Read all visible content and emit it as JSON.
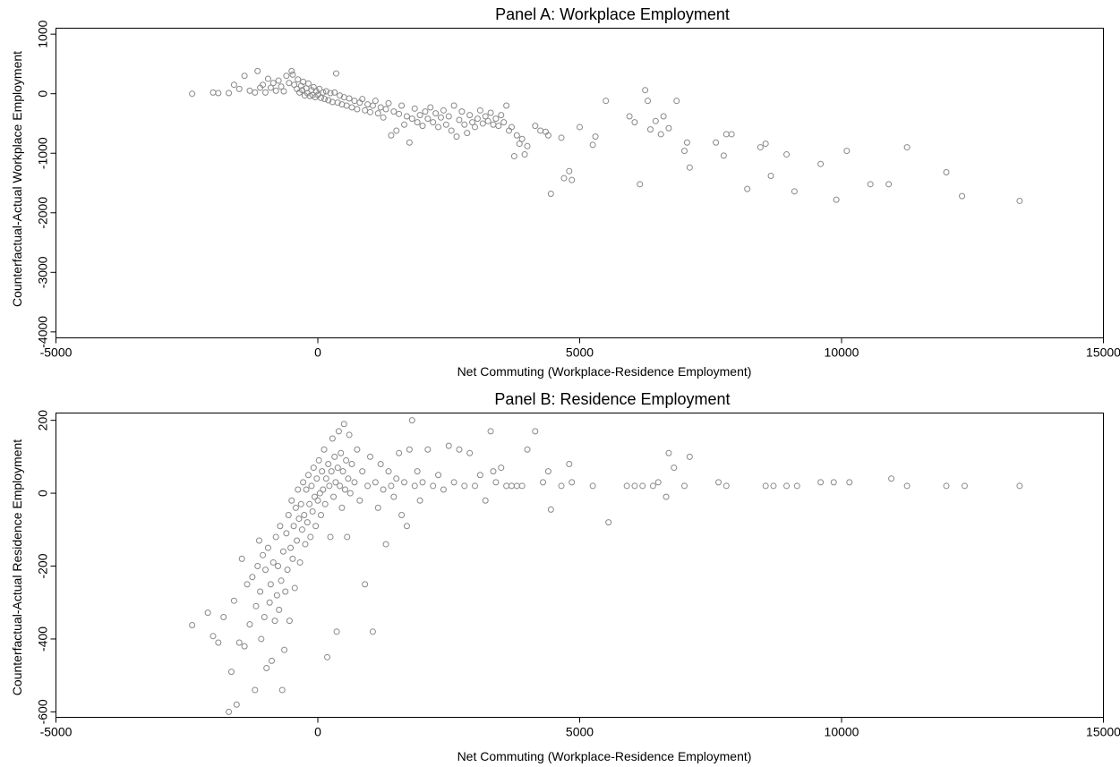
{
  "chart_data": [
    {
      "type": "scatter",
      "title": "Panel A: Workplace Employment",
      "xlabel": "Net Commuting (Workplace-Residence Employment)",
      "ylabel": "Counterfactual-Actual Workplace Employment",
      "xlim": [
        -5000,
        15000
      ],
      "ylim": [
        -4100,
        1100
      ],
      "xticks": [
        "-5000",
        "0",
        "5000",
        "10000",
        "15000"
      ],
      "xtick_values": [
        -5000,
        0,
        5000,
        10000,
        15000
      ],
      "yticks": [
        "-4000",
        "-3000",
        "-2000",
        "-1000",
        "0",
        "1000"
      ],
      "ytick_values": [
        -4000,
        -3000,
        -2000,
        -1000,
        0,
        1000
      ],
      "marker_color": "#888888",
      "points": [
        [
          -2400,
          0
        ],
        [
          -2000,
          20
        ],
        [
          -1900,
          10
        ],
        [
          -1700,
          10
        ],
        [
          -1600,
          150
        ],
        [
          -1500,
          80
        ],
        [
          -1400,
          300
        ],
        [
          -1300,
          50
        ],
        [
          -1200,
          20
        ],
        [
          -1150,
          380
        ],
        [
          -1100,
          100
        ],
        [
          -1050,
          150
        ],
        [
          -1000,
          20
        ],
        [
          -950,
          250
        ],
        [
          -900,
          100
        ],
        [
          -850,
          180
        ],
        [
          -800,
          50
        ],
        [
          -750,
          220
        ],
        [
          -700,
          120
        ],
        [
          -650,
          40
        ],
        [
          -600,
          300
        ],
        [
          -550,
          180
        ],
        [
          -500,
          380
        ],
        [
          -480,
          320
        ],
        [
          -450,
          150
        ],
        [
          -400,
          80
        ],
        [
          -380,
          240
        ],
        [
          -350,
          20
        ],
        [
          -320,
          130
        ],
        [
          -300,
          60
        ],
        [
          -280,
          200
        ],
        [
          -250,
          -30
        ],
        [
          -220,
          90
        ],
        [
          -200,
          10
        ],
        [
          -180,
          170
        ],
        [
          -150,
          -40
        ],
        [
          -120,
          60
        ],
        [
          -100,
          -20
        ],
        [
          -80,
          110
        ],
        [
          -50,
          -60
        ],
        [
          -30,
          40
        ],
        [
          0,
          -20
        ],
        [
          30,
          80
        ],
        [
          60,
          -70
        ],
        [
          100,
          20
        ],
        [
          130,
          -90
        ],
        [
          160,
          40
        ],
        [
          200,
          -110
        ],
        [
          240,
          10
        ],
        [
          280,
          -140
        ],
        [
          320,
          20
        ],
        [
          350,
          340
        ],
        [
          380,
          -150
        ],
        [
          420,
          -30
        ],
        [
          460,
          -180
        ],
        [
          500,
          -60
        ],
        [
          550,
          -200
        ],
        [
          600,
          -80
        ],
        [
          650,
          -230
        ],
        [
          700,
          -120
        ],
        [
          750,
          -260
        ],
        [
          800,
          -150
        ],
        [
          850,
          -90
        ],
        [
          900,
          -280
        ],
        [
          950,
          -180
        ],
        [
          1000,
          -310
        ],
        [
          1050,
          -200
        ],
        [
          1100,
          -120
        ],
        [
          1150,
          -330
        ],
        [
          1200,
          -230
        ],
        [
          1250,
          -400
        ],
        [
          1300,
          -260
        ],
        [
          1350,
          -160
        ],
        [
          1400,
          -700
        ],
        [
          1450,
          -300
        ],
        [
          1500,
          -620
        ],
        [
          1550,
          -340
        ],
        [
          1600,
          -200
        ],
        [
          1650,
          -520
        ],
        [
          1700,
          -380
        ],
        [
          1750,
          -820
        ],
        [
          1800,
          -420
        ],
        [
          1850,
          -250
        ],
        [
          1900,
          -480
        ],
        [
          1950,
          -360
        ],
        [
          2000,
          -540
        ],
        [
          2050,
          -300
        ],
        [
          2100,
          -420
        ],
        [
          2150,
          -230
        ],
        [
          2200,
          -480
        ],
        [
          2250,
          -330
        ],
        [
          2300,
          -560
        ],
        [
          2350,
          -400
        ],
        [
          2400,
          -280
        ],
        [
          2450,
          -520
        ],
        [
          2500,
          -380
        ],
        [
          2550,
          -620
        ],
        [
          2600,
          -200
        ],
        [
          2650,
          -720
        ],
        [
          2700,
          -440
        ],
        [
          2750,
          -300
        ],
        [
          2800,
          -520
        ],
        [
          2850,
          -660
        ],
        [
          2900,
          -360
        ],
        [
          2950,
          -480
        ],
        [
          3000,
          -560
        ],
        [
          3050,
          -420
        ],
        [
          3100,
          -280
        ],
        [
          3150,
          -500
        ],
        [
          3200,
          -380
        ],
        [
          3250,
          -460
        ],
        [
          3300,
          -320
        ],
        [
          3350,
          -520
        ],
        [
          3400,
          -420
        ],
        [
          3450,
          -540
        ],
        [
          3500,
          -360
        ],
        [
          3550,
          -480
        ],
        [
          3600,
          -200
        ],
        [
          3650,
          -620
        ],
        [
          3700,
          -560
        ],
        [
          3750,
          -1050
        ],
        [
          3800,
          -700
        ],
        [
          3850,
          -840
        ],
        [
          3900,
          -760
        ],
        [
          3950,
          -1020
        ],
        [
          4000,
          -880
        ],
        [
          4150,
          -540
        ],
        [
          4250,
          -620
        ],
        [
          4350,
          -640
        ],
        [
          4400,
          -700
        ],
        [
          4450,
          -1680
        ],
        [
          4650,
          -740
        ],
        [
          4700,
          -1420
        ],
        [
          4800,
          -1300
        ],
        [
          4850,
          -1450
        ],
        [
          5000,
          -560
        ],
        [
          5250,
          -860
        ],
        [
          5300,
          -720
        ],
        [
          5500,
          -120
        ],
        [
          5950,
          -380
        ],
        [
          6050,
          -480
        ],
        [
          6150,
          -1520
        ],
        [
          6250,
          60
        ],
        [
          6300,
          -120
        ],
        [
          6350,
          -600
        ],
        [
          6450,
          -460
        ],
        [
          6550,
          -680
        ],
        [
          6600,
          -380
        ],
        [
          6700,
          -580
        ],
        [
          6850,
          -120
        ],
        [
          7000,
          -960
        ],
        [
          7050,
          -820
        ],
        [
          7100,
          -1240
        ],
        [
          7600,
          -820
        ],
        [
          7750,
          -1040
        ],
        [
          7800,
          -680
        ],
        [
          7900,
          -680
        ],
        [
          8200,
          -1600
        ],
        [
          8450,
          -900
        ],
        [
          8550,
          -840
        ],
        [
          8650,
          -1380
        ],
        [
          8950,
          -1020
        ],
        [
          9100,
          -1640
        ],
        [
          9600,
          -1180
        ],
        [
          9900,
          -1780
        ],
        [
          10100,
          -960
        ],
        [
          10550,
          -1520
        ],
        [
          10900,
          -1520
        ],
        [
          11250,
          -900
        ],
        [
          12000,
          -1320
        ],
        [
          12300,
          -1720
        ],
        [
          13400,
          -1800
        ]
      ]
    },
    {
      "type": "scatter",
      "title": "Panel B: Residence Employment",
      "xlabel": "Net Commuting (Workplace-Residence Employment)",
      "ylabel": "Counterfactual-Actual Residence Employment",
      "xlim": [
        -5000,
        15000
      ],
      "ylim": [
        -615,
        220
      ],
      "xticks": [
        "-5000",
        "0",
        "5000",
        "10000",
        "15000"
      ],
      "xtick_values": [
        -5000,
        0,
        5000,
        10000,
        15000
      ],
      "yticks": [
        "-600",
        "-400",
        "-200",
        "0",
        "200"
      ],
      "ytick_values": [
        -600,
        -400,
        -200,
        0,
        200
      ],
      "marker_color": "#888888",
      "points": [
        [
          -2400,
          -362
        ],
        [
          -2100,
          -328
        ],
        [
          -2000,
          -392
        ],
        [
          -1900,
          -410
        ],
        [
          -1800,
          -340
        ],
        [
          -1700,
          -600
        ],
        [
          -1650,
          -490
        ],
        [
          -1600,
          -295
        ],
        [
          -1550,
          -580
        ],
        [
          -1500,
          -410
        ],
        [
          -1450,
          -180
        ],
        [
          -1400,
          -420
        ],
        [
          -1350,
          -250
        ],
        [
          -1300,
          -360
        ],
        [
          -1250,
          -230
        ],
        [
          -1200,
          -540
        ],
        [
          -1180,
          -310
        ],
        [
          -1150,
          -200
        ],
        [
          -1120,
          -130
        ],
        [
          -1100,
          -270
        ],
        [
          -1080,
          -400
        ],
        [
          -1050,
          -170
        ],
        [
          -1020,
          -340
        ],
        [
          -1000,
          -210
        ],
        [
          -980,
          -480
        ],
        [
          -950,
          -150
        ],
        [
          -920,
          -300
        ],
        [
          -900,
          -250
        ],
        [
          -880,
          -460
        ],
        [
          -850,
          -190
        ],
        [
          -820,
          -350
        ],
        [
          -800,
          -120
        ],
        [
          -780,
          -280
        ],
        [
          -760,
          -200
        ],
        [
          -740,
          -320
        ],
        [
          -720,
          -90
        ],
        [
          -700,
          -240
        ],
        [
          -680,
          -540
        ],
        [
          -660,
          -160
        ],
        [
          -640,
          -430
        ],
        [
          -620,
          -270
        ],
        [
          -600,
          -110
        ],
        [
          -580,
          -210
        ],
        [
          -560,
          -60
        ],
        [
          -540,
          -350
        ],
        [
          -520,
          -150
        ],
        [
          -500,
          -20
        ],
        [
          -480,
          -180
        ],
        [
          -460,
          -90
        ],
        [
          -440,
          -260
        ],
        [
          -420,
          -40
        ],
        [
          -400,
          -130
        ],
        [
          -380,
          10
        ],
        [
          -360,
          -70
        ],
        [
          -340,
          -190
        ],
        [
          -320,
          -30
        ],
        [
          -300,
          -100
        ],
        [
          -280,
          30
        ],
        [
          -260,
          -60
        ],
        [
          -240,
          -140
        ],
        [
          -220,
          10
        ],
        [
          -200,
          -80
        ],
        [
          -180,
          50
        ],
        [
          -160,
          -30
        ],
        [
          -140,
          -120
        ],
        [
          -120,
          20
        ],
        [
          -100,
          -50
        ],
        [
          -80,
          70
        ],
        [
          -60,
          -10
        ],
        [
          -40,
          -90
        ],
        [
          -20,
          40
        ],
        [
          0,
          -20
        ],
        [
          20,
          90
        ],
        [
          40,
          0
        ],
        [
          60,
          -60
        ],
        [
          80,
          60
        ],
        [
          100,
          10
        ],
        [
          120,
          120
        ],
        [
          140,
          -30
        ],
        [
          160,
          40
        ],
        [
          180,
          -450
        ],
        [
          200,
          80
        ],
        [
          220,
          20
        ],
        [
          240,
          -120
        ],
        [
          260,
          60
        ],
        [
          280,
          150
        ],
        [
          300,
          -10
        ],
        [
          320,
          100
        ],
        [
          340,
          30
        ],
        [
          360,
          -380
        ],
        [
          380,
          70
        ],
        [
          400,
          170
        ],
        [
          420,
          20
        ],
        [
          440,
          110
        ],
        [
          460,
          -40
        ],
        [
          480,
          60
        ],
        [
          500,
          190
        ],
        [
          520,
          10
        ],
        [
          540,
          90
        ],
        [
          560,
          -120
        ],
        [
          580,
          40
        ],
        [
          600,
          160
        ],
        [
          620,
          0
        ],
        [
          650,
          80
        ],
        [
          700,
          30
        ],
        [
          750,
          120
        ],
        [
          800,
          -20
        ],
        [
          850,
          60
        ],
        [
          900,
          -250
        ],
        [
          950,
          20
        ],
        [
          1000,
          100
        ],
        [
          1050,
          -380
        ],
        [
          1100,
          30
        ],
        [
          1150,
          -40
        ],
        [
          1200,
          80
        ],
        [
          1250,
          10
        ],
        [
          1300,
          -140
        ],
        [
          1350,
          60
        ],
        [
          1400,
          20
        ],
        [
          1450,
          -10
        ],
        [
          1500,
          40
        ],
        [
          1550,
          110
        ],
        [
          1600,
          -60
        ],
        [
          1650,
          30
        ],
        [
          1700,
          -90
        ],
        [
          1750,
          120
        ],
        [
          1800,
          200
        ],
        [
          1850,
          20
        ],
        [
          1900,
          60
        ],
        [
          1950,
          -20
        ],
        [
          2000,
          30
        ],
        [
          2100,
          120
        ],
        [
          2200,
          20
        ],
        [
          2300,
          50
        ],
        [
          2400,
          10
        ],
        [
          2500,
          130
        ],
        [
          2600,
          30
        ],
        [
          2700,
          120
        ],
        [
          2800,
          20
        ],
        [
          2900,
          110
        ],
        [
          3000,
          20
        ],
        [
          3100,
          50
        ],
        [
          3200,
          -20
        ],
        [
          3300,
          170
        ],
        [
          3350,
          60
        ],
        [
          3400,
          30
        ],
        [
          3500,
          70
        ],
        [
          3600,
          20
        ],
        [
          3700,
          20
        ],
        [
          3800,
          20
        ],
        [
          3900,
          20
        ],
        [
          4000,
          120
        ],
        [
          4150,
          170
        ],
        [
          4300,
          30
        ],
        [
          4400,
          60
        ],
        [
          4450,
          -45
        ],
        [
          4650,
          20
        ],
        [
          4800,
          80
        ],
        [
          4850,
          30
        ],
        [
          5250,
          20
        ],
        [
          5550,
          -80
        ],
        [
          5900,
          20
        ],
        [
          6050,
          20
        ],
        [
          6200,
          20
        ],
        [
          6400,
          20
        ],
        [
          6500,
          30
        ],
        [
          6650,
          -10
        ],
        [
          6700,
          110
        ],
        [
          6800,
          70
        ],
        [
          7000,
          20
        ],
        [
          7100,
          100
        ],
        [
          7650,
          30
        ],
        [
          7800,
          20
        ],
        [
          8550,
          20
        ],
        [
          8700,
          20
        ],
        [
          8950,
          20
        ],
        [
          9150,
          20
        ],
        [
          9600,
          30
        ],
        [
          9850,
          30
        ],
        [
          10150,
          30
        ],
        [
          10950,
          40
        ],
        [
          11250,
          20
        ],
        [
          12000,
          20
        ],
        [
          12350,
          20
        ],
        [
          13400,
          20
        ]
      ]
    }
  ]
}
